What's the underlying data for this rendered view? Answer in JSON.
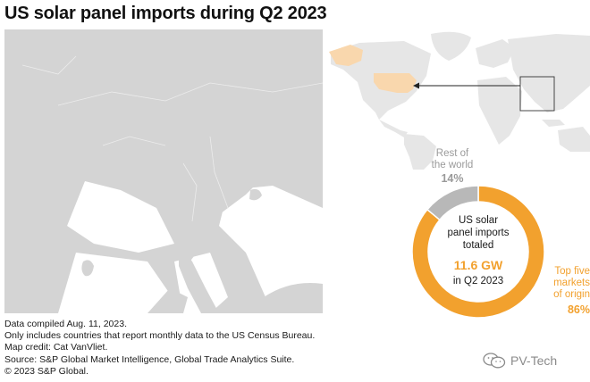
{
  "title": "US solar panel imports during Q2 2023",
  "center": {
    "line1": "US solar",
    "line2": "panel imports",
    "line3": "totaled",
    "value": "11.6 GW",
    "period": "in Q2 2023"
  },
  "chart_data": {
    "type": "pie",
    "subtype": "donut",
    "categories": [
      "Top five markets of origin",
      "Rest of the world"
    ],
    "values": [
      86,
      14
    ],
    "labels": {
      "rest_line1": "Rest of",
      "rest_line2": "the world",
      "rest_pct": "14%",
      "top_line1": "Top five",
      "top_line2": "markets",
      "top_line3": "of origin",
      "top_pct": "86%"
    },
    "colors": [
      "#f2a12e",
      "#b8b8b8"
    ]
  },
  "footnotes": [
    "Data compiled Aug. 11, 2023.",
    "Only includes countries that report monthly data to the US Census Bureau.",
    "Map credit: Cat VanVliet.",
    "Source: S&P Global Market Intelligence, Global Trade Analytics Suite.",
    "© 2023 S&P Global."
  ],
  "watermark": "PV-Tech",
  "colors": {
    "accent": "#f2a12e",
    "land": "#d4d4d4",
    "land_light": "#e6e6e6",
    "grey_label": "#9a9a9a"
  },
  "icons": [
    "wechat-icon"
  ]
}
